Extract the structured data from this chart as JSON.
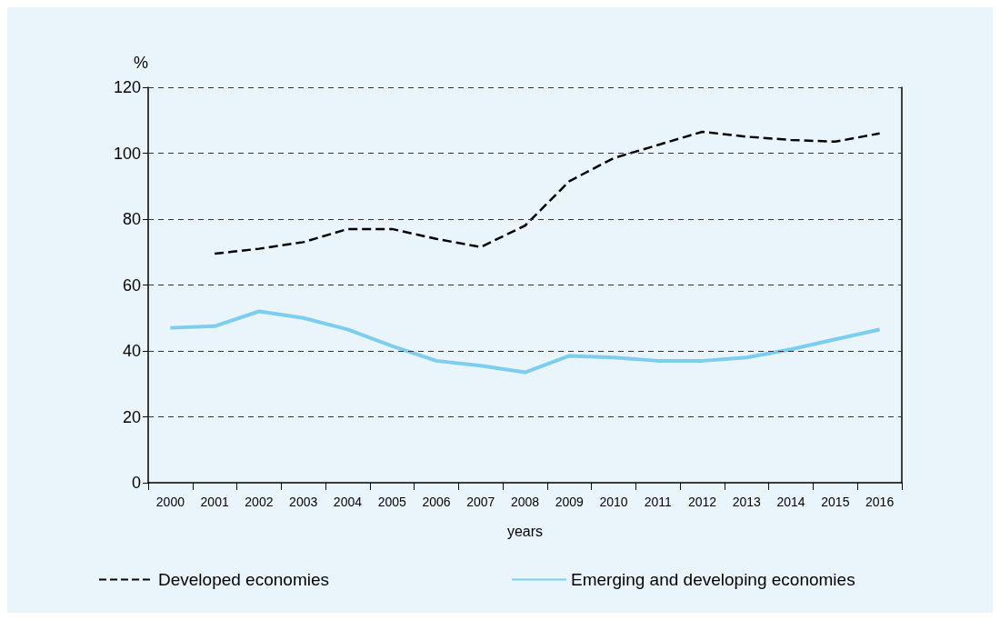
{
  "chart_data": {
    "type": "line",
    "ylabel": "%",
    "xlabel": "years",
    "categories": [
      "2000",
      "2001",
      "2002",
      "2003",
      "2004",
      "2005",
      "2006",
      "2007",
      "2008",
      "2009",
      "2010",
      "2011",
      "2012",
      "2013",
      "2014",
      "2015",
      "2016"
    ],
    "series": [
      {
        "name": "Developed economies",
        "color": "#000000",
        "line_style": "dashed",
        "values": [
          null,
          69.5,
          71,
          73,
          77,
          77,
          74,
          71.5,
          78,
          91.5,
          98.5,
          102.5,
          106.5,
          105,
          104,
          103.5,
          106
        ]
      },
      {
        "name": "Emerging and developing economies",
        "color": "#7dcdf0",
        "line_style": "solid",
        "values": [
          47,
          47.5,
          52,
          50,
          46.5,
          41.5,
          37,
          35.5,
          33.5,
          38.5,
          38,
          37,
          37,
          38,
          40.5,
          43.5,
          46.5
        ]
      }
    ],
    "ylim": [
      0,
      120
    ],
    "yticks": [
      0,
      20,
      40,
      60,
      80,
      100,
      120
    ],
    "grid": "y",
    "legend": "bottom",
    "marker": "none"
  }
}
